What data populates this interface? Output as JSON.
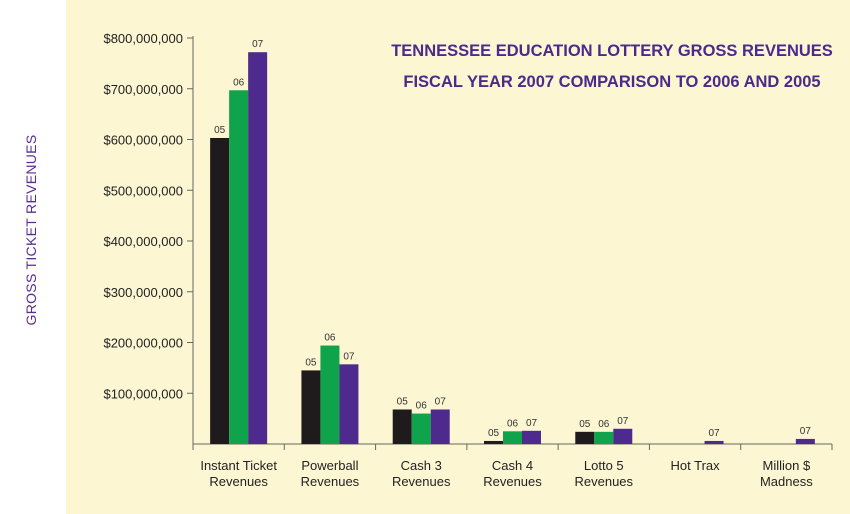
{
  "chart_data": {
    "type": "bar",
    "title_lines": [
      "TENNESSEE EDUCATION LOTTERY GROSS REVENUES",
      "FISCAL YEAR 2007 COMPARISON TO 2006 AND 2005"
    ],
    "ylabel": "GROSS TICKET REVENUES",
    "ylim": [
      0,
      800000000
    ],
    "yticks": [
      "$800,000,000",
      "$700,000,000",
      "$600,000,000",
      "$500,000,000",
      "$400,000,000",
      "$300,000,000",
      "$200,000,000",
      "$100,000,000"
    ],
    "ytick_values": [
      800000000,
      700000000,
      600000000,
      500000000,
      400000000,
      300000000,
      200000000,
      100000000
    ],
    "categories": [
      [
        "Instant Ticket",
        "Revenues"
      ],
      [
        "Powerball",
        "Revenues"
      ],
      [
        "Cash 3",
        "Revenues"
      ],
      [
        "Cash 4",
        "Revenues"
      ],
      [
        "Lotto 5",
        "Revenues"
      ],
      [
        "Hot Trax",
        ""
      ],
      [
        "Million $",
        "Madness"
      ]
    ],
    "series": [
      {
        "name": "05",
        "color": "#1f1a1c",
        "values": [
          603000000,
          145000000,
          68000000,
          6000000,
          24000000,
          null,
          null
        ]
      },
      {
        "name": "06",
        "color": "#0fa34b",
        "values": [
          697000000,
          194000000,
          60000000,
          25000000,
          24000000,
          null,
          null
        ]
      },
      {
        "name": "07",
        "color": "#4e2a8e",
        "values": [
          772000000,
          157000000,
          68000000,
          26000000,
          30000000,
          6000000,
          10000000
        ]
      }
    ],
    "legend": "none",
    "grid": false
  }
}
